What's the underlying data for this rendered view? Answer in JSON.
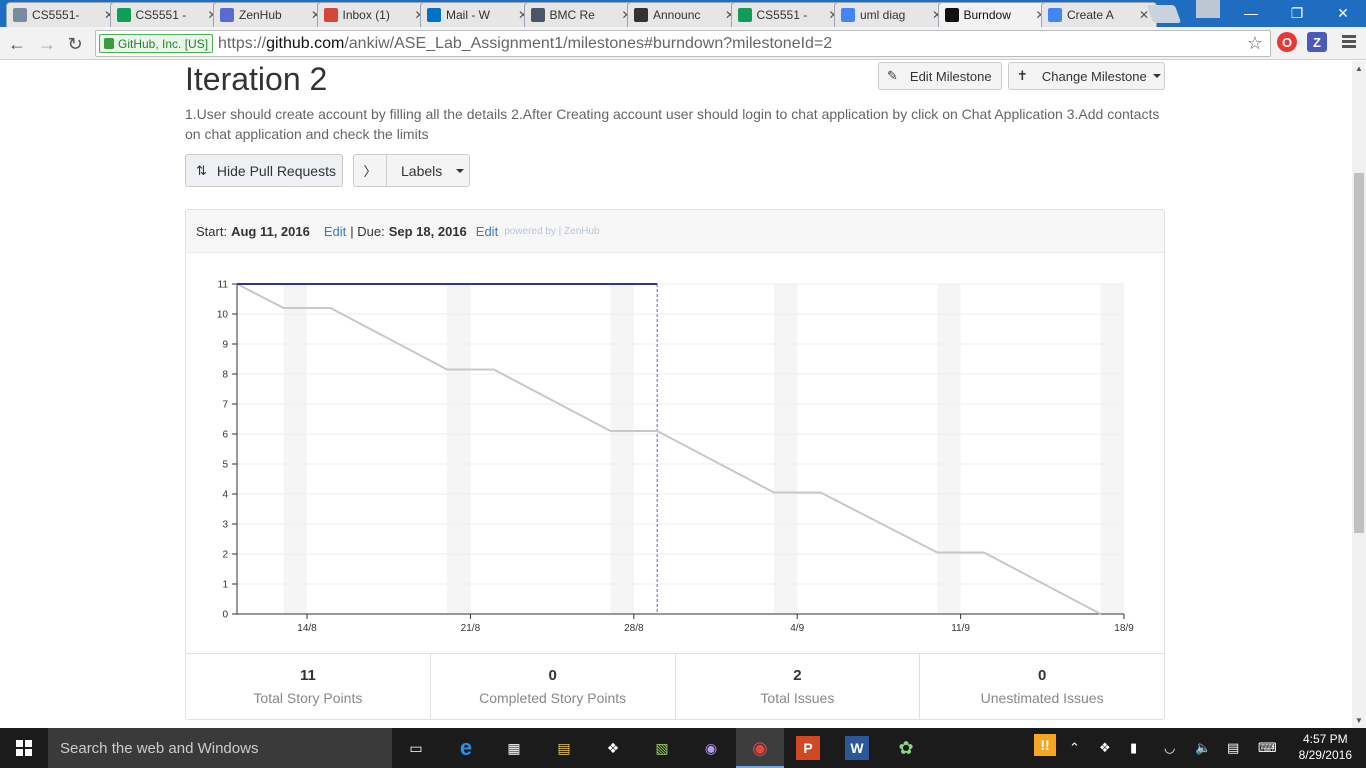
{
  "browser": {
    "tabs": [
      {
        "label": "CS5551-",
        "icon": "doc-icon",
        "color": "#7a8ba0"
      },
      {
        "label": "CS5551 -",
        "icon": "sheets-icon",
        "color": "#0f9d58"
      },
      {
        "label": "ZenHub",
        "icon": "zenhub-icon",
        "color": "#5a6bd0"
      },
      {
        "label": "Inbox (1)",
        "icon": "gmail-icon",
        "color": "#d44638"
      },
      {
        "label": "Mail - W",
        "icon": "mail-icon",
        "color": "#0072c6"
      },
      {
        "label": "BMC Re",
        "icon": "bmc-icon",
        "color": "#4a5568"
      },
      {
        "label": "Announc",
        "icon": "blackboard-icon",
        "color": "#333333"
      },
      {
        "label": "CS5551 -",
        "icon": "sheets-icon",
        "color": "#0f9d58"
      },
      {
        "label": "uml diag",
        "icon": "google-icon",
        "color": "#4285f4"
      },
      {
        "label": "Burndow",
        "icon": "github-icon",
        "color": "#111111",
        "active": true
      },
      {
        "label": "Create A",
        "icon": "google-icon",
        "color": "#4285f4"
      }
    ],
    "security_label": "GitHub, Inc. [US]",
    "url_scheme": "https://",
    "url_host": "github.com",
    "url_path": "/ankiw/ASE_Lab_Assignment1/milestones#burndown?milestoneId=2"
  },
  "milestone": {
    "title": "Iteration 2",
    "description": "1.User should create account by filling all the details 2.After Creating account user should login to chat application by click on Chat Application 3.Add contacts on chat application and check the limits",
    "edit_label": "Edit Milestone",
    "change_label": "Change Milestone",
    "hide_pr_label": "Hide Pull Requests",
    "labels_label": "Labels"
  },
  "burndown": {
    "start_prefix": "Start:",
    "start_date": "Aug 11, 2016",
    "edit_label": "Edit",
    "due_prefix": "| Due:",
    "due_date": "Sep 18, 2016",
    "powered": "powered by | ZenHub",
    "stats": [
      {
        "value": "11",
        "label": "Total Story Points"
      },
      {
        "value": "0",
        "label": "Completed Story Points"
      },
      {
        "value": "2",
        "label": "Total Issues"
      },
      {
        "value": "0",
        "label": "Unestimated Issues"
      }
    ]
  },
  "chart_data": {
    "type": "line",
    "ylim": [
      0,
      11
    ],
    "yticks": [
      0,
      1,
      2,
      3,
      4,
      5,
      6,
      7,
      8,
      9,
      10,
      11
    ],
    "xlim": [
      "2016-08-11",
      "2016-09-18"
    ],
    "xticks": [
      "14/8",
      "21/8",
      "28/8",
      "4/9",
      "11/9",
      "18/9"
    ],
    "weekend_bands": [
      [
        "2016-08-13",
        "2016-08-14"
      ],
      [
        "2016-08-20",
        "2016-08-21"
      ],
      [
        "2016-08-27",
        "2016-08-28"
      ],
      [
        "2016-09-03",
        "2016-09-04"
      ],
      [
        "2016-09-10",
        "2016-09-11"
      ],
      [
        "2016-09-17",
        "2016-09-18"
      ]
    ],
    "today": "2016-08-29",
    "series": [
      {
        "style": "ideal",
        "color": "#c8c8c8",
        "x": [
          "2016-08-11",
          "2016-08-13",
          "2016-08-15",
          "2016-08-20",
          "2016-08-22",
          "2016-08-27",
          "2016-08-29",
          "2016-09-03",
          "2016-09-05",
          "2016-09-10",
          "2016-09-12",
          "2016-09-17"
        ],
        "values": [
          11,
          10.2,
          10.2,
          8.15,
          8.15,
          6.1,
          6.1,
          4.05,
          4.05,
          2.05,
          2.05,
          0
        ]
      },
      {
        "style": "actual",
        "color": "#2d3a8c",
        "x": [
          "2016-08-11",
          "2016-08-29"
        ],
        "values": [
          11,
          11
        ]
      }
    ]
  },
  "taskbar": {
    "search_placeholder": "Search the web and Windows",
    "time": "4:57 PM",
    "date": "8/29/2016"
  }
}
